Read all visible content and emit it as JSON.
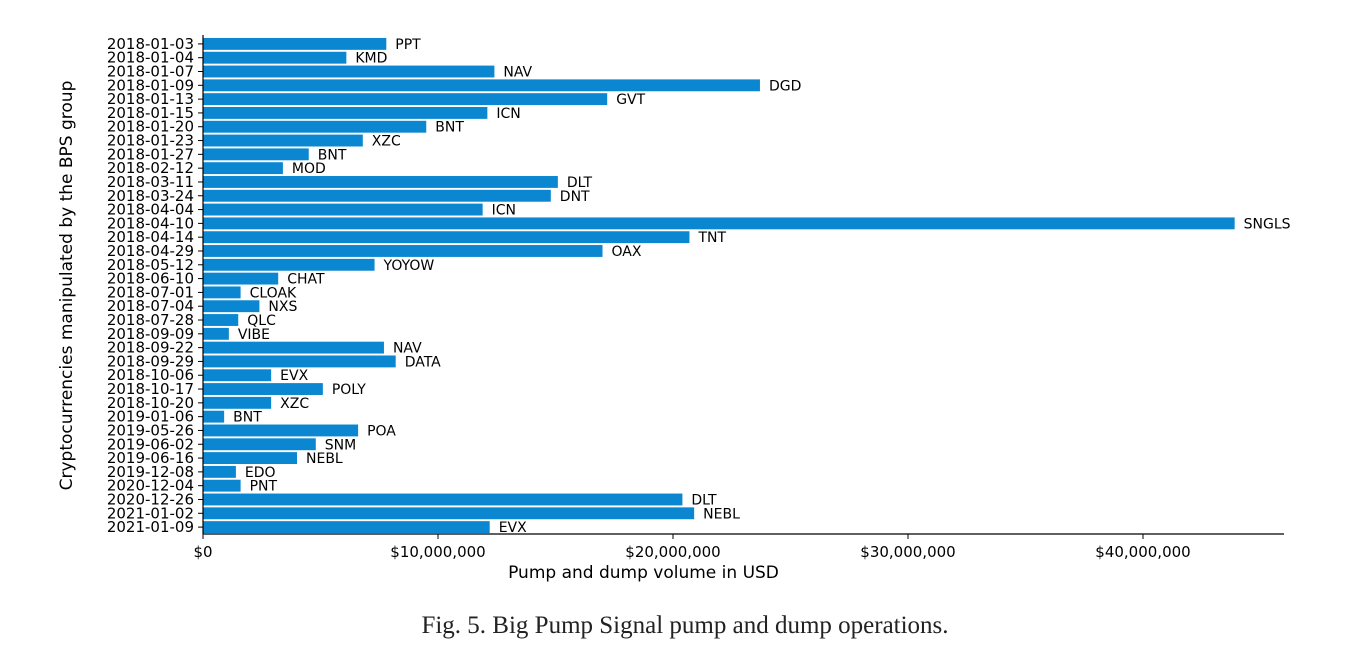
{
  "chart_data": {
    "type": "bar",
    "orientation": "horizontal",
    "xlabel": "Pump and dump volume in USD",
    "ylabel": "Cryptocurrencies manipulated by the BPS group",
    "xlim": [
      0,
      46000000
    ],
    "xticks": [
      0,
      10000000,
      20000000,
      30000000,
      40000000
    ],
    "xtick_labels": [
      "$0",
      "$10,000,000",
      "$20,000,000",
      "$30,000,000",
      "$40,000,000"
    ],
    "bar_color": "#0a87d0",
    "grid": false,
    "categories": [
      "2018-01-03",
      "2018-01-04",
      "2018-01-07",
      "2018-01-09",
      "2018-01-13",
      "2018-01-15",
      "2018-01-20",
      "2018-01-23",
      "2018-01-27",
      "2018-02-12",
      "2018-03-11",
      "2018-03-24",
      "2018-04-04",
      "2018-04-10",
      "2018-04-14",
      "2018-04-29",
      "2018-05-12",
      "2018-06-10",
      "2018-07-01",
      "2018-07-04",
      "2018-07-28",
      "2018-09-09",
      "2018-09-22",
      "2018-09-29",
      "2018-10-06",
      "2018-10-17",
      "2018-10-20",
      "2019-01-06",
      "2019-05-26",
      "2019-06-02",
      "2019-06-16",
      "2019-12-08",
      "2020-12-04",
      "2020-12-26",
      "2021-01-02",
      "2021-01-09"
    ],
    "coins": [
      "PPT",
      "KMD",
      "NAV",
      "DGD",
      "GVT",
      "ICN",
      "BNT",
      "XZC",
      "BNT",
      "MOD",
      "DLT",
      "DNT",
      "ICN",
      "SNGLS",
      "TNT",
      "OAX",
      "YOYOW",
      "CHAT",
      "CLOAK",
      "NXS",
      "QLC",
      "VIBE",
      "NAV",
      "DATA",
      "EVX",
      "POLY",
      "XZC",
      "BNT",
      "POA",
      "SNM",
      "NEBL",
      "EDO",
      "PNT",
      "DLT",
      "NEBL",
      "EVX"
    ],
    "values": [
      7800000,
      6100000,
      12400000,
      23700000,
      17200000,
      12100000,
      9500000,
      6800000,
      4500000,
      3400000,
      15100000,
      14800000,
      11900000,
      43900000,
      20700000,
      17000000,
      7300000,
      3200000,
      1600000,
      2400000,
      1500000,
      1100000,
      7700000,
      8200000,
      2900000,
      5100000,
      2900000,
      900000,
      6600000,
      4800000,
      4000000,
      1400000,
      1600000,
      20400000,
      20900000,
      12200000
    ]
  },
  "caption": "Fig. 5.  Big Pump Signal pump and dump operations."
}
